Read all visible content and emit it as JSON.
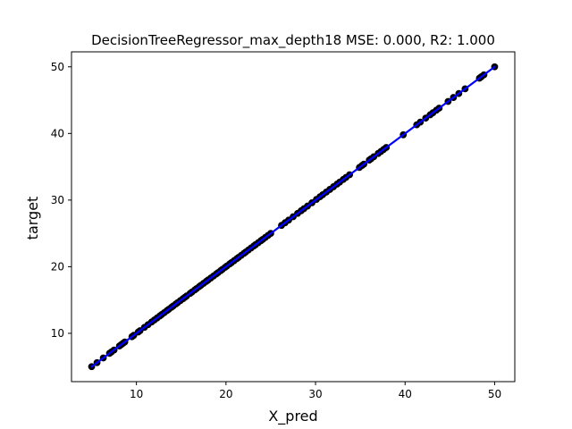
{
  "chart_data": {
    "type": "scatter",
    "title": "DecisionTreeRegressor_max_depth18 MSE: 0.000, R2: 1.000",
    "xlabel": "X_pred",
    "ylabel": "target",
    "xlim": [
      2.75,
      52.25
    ],
    "ylim": [
      2.75,
      52.25
    ],
    "xticks": [
      10,
      20,
      30,
      40,
      50
    ],
    "yticks": [
      10,
      20,
      30,
      40,
      50
    ],
    "grid": false,
    "series": [
      {
        "kind": "points",
        "color": "#000000",
        "points": [
          [
            5.0,
            5.0
          ],
          [
            5.6,
            5.6
          ],
          [
            6.3,
            6.3
          ],
          [
            7.0,
            7.0
          ],
          [
            7.2,
            7.2
          ],
          [
            7.5,
            7.5
          ],
          [
            8.1,
            8.1
          ],
          [
            8.3,
            8.3
          ],
          [
            8.5,
            8.5
          ],
          [
            8.7,
            8.7
          ],
          [
            9.5,
            9.5
          ],
          [
            9.7,
            9.7
          ],
          [
            10.2,
            10.2
          ],
          [
            10.4,
            10.4
          ],
          [
            10.9,
            10.9
          ],
          [
            11.3,
            11.3
          ],
          [
            11.7,
            11.7
          ],
          [
            12.0,
            12.0
          ],
          [
            12.3,
            12.3
          ],
          [
            12.6,
            12.6
          ],
          [
            12.8,
            12.8
          ],
          [
            13.1,
            13.1
          ],
          [
            13.4,
            13.4
          ],
          [
            13.6,
            13.6
          ],
          [
            13.9,
            13.9
          ],
          [
            14.1,
            14.1
          ],
          [
            14.4,
            14.4
          ],
          [
            14.6,
            14.6
          ],
          [
            14.9,
            14.9
          ],
          [
            15.2,
            15.2
          ],
          [
            15.4,
            15.4
          ],
          [
            15.6,
            15.6
          ],
          [
            16.0,
            16.0
          ],
          [
            16.2,
            16.2
          ],
          [
            16.5,
            16.5
          ],
          [
            16.7,
            16.7
          ],
          [
            17.0,
            17.0
          ],
          [
            17.2,
            17.2
          ],
          [
            17.5,
            17.5
          ],
          [
            17.8,
            17.8
          ],
          [
            18.0,
            18.0
          ],
          [
            18.3,
            18.3
          ],
          [
            18.6,
            18.6
          ],
          [
            18.9,
            18.9
          ],
          [
            19.1,
            19.1
          ],
          [
            19.4,
            19.4
          ],
          [
            19.6,
            19.6
          ],
          [
            19.9,
            19.9
          ],
          [
            20.1,
            20.1
          ],
          [
            20.4,
            20.4
          ],
          [
            20.6,
            20.6
          ],
          [
            20.9,
            20.9
          ],
          [
            21.2,
            21.2
          ],
          [
            21.4,
            21.4
          ],
          [
            21.7,
            21.7
          ],
          [
            22.0,
            22.0
          ],
          [
            22.2,
            22.2
          ],
          [
            22.5,
            22.5
          ],
          [
            22.8,
            22.8
          ],
          [
            23.1,
            23.1
          ],
          [
            23.3,
            23.3
          ],
          [
            23.6,
            23.6
          ],
          [
            23.9,
            23.9
          ],
          [
            24.1,
            24.1
          ],
          [
            24.4,
            24.4
          ],
          [
            24.7,
            24.7
          ],
          [
            25.0,
            25.0
          ],
          [
            26.2,
            26.2
          ],
          [
            26.6,
            26.6
          ],
          [
            27.0,
            27.0
          ],
          [
            27.5,
            27.5
          ],
          [
            28.0,
            28.0
          ],
          [
            28.4,
            28.4
          ],
          [
            28.7,
            28.7
          ],
          [
            29.1,
            29.1
          ],
          [
            29.6,
            29.6
          ],
          [
            30.1,
            30.1
          ],
          [
            30.5,
            30.5
          ],
          [
            30.8,
            30.8
          ],
          [
            31.2,
            31.2
          ],
          [
            31.6,
            31.6
          ],
          [
            32.0,
            32.0
          ],
          [
            32.4,
            32.4
          ],
          [
            32.7,
            32.7
          ],
          [
            33.1,
            33.1
          ],
          [
            33.4,
            33.4
          ],
          [
            33.8,
            33.8
          ],
          [
            34.9,
            34.9
          ],
          [
            35.2,
            35.2
          ],
          [
            35.4,
            35.4
          ],
          [
            36.0,
            36.0
          ],
          [
            36.2,
            36.2
          ],
          [
            36.5,
            36.5
          ],
          [
            37.0,
            37.0
          ],
          [
            37.3,
            37.3
          ],
          [
            37.6,
            37.6
          ],
          [
            37.9,
            37.9
          ],
          [
            39.8,
            39.8
          ],
          [
            41.3,
            41.3
          ],
          [
            41.7,
            41.7
          ],
          [
            42.3,
            42.3
          ],
          [
            42.8,
            42.8
          ],
          [
            43.1,
            43.1
          ],
          [
            43.5,
            43.5
          ],
          [
            43.8,
            43.8
          ],
          [
            44.8,
            44.8
          ],
          [
            45.4,
            45.4
          ],
          [
            46.0,
            46.0
          ],
          [
            46.7,
            46.7
          ],
          [
            48.3,
            48.3
          ],
          [
            48.5,
            48.5
          ],
          [
            48.8,
            48.8
          ],
          [
            50.0,
            50.0
          ]
        ]
      },
      {
        "kind": "line",
        "color": "#0000ff",
        "points": [
          [
            5.0,
            5.0
          ],
          [
            50.0,
            50.0
          ]
        ]
      }
    ]
  }
}
